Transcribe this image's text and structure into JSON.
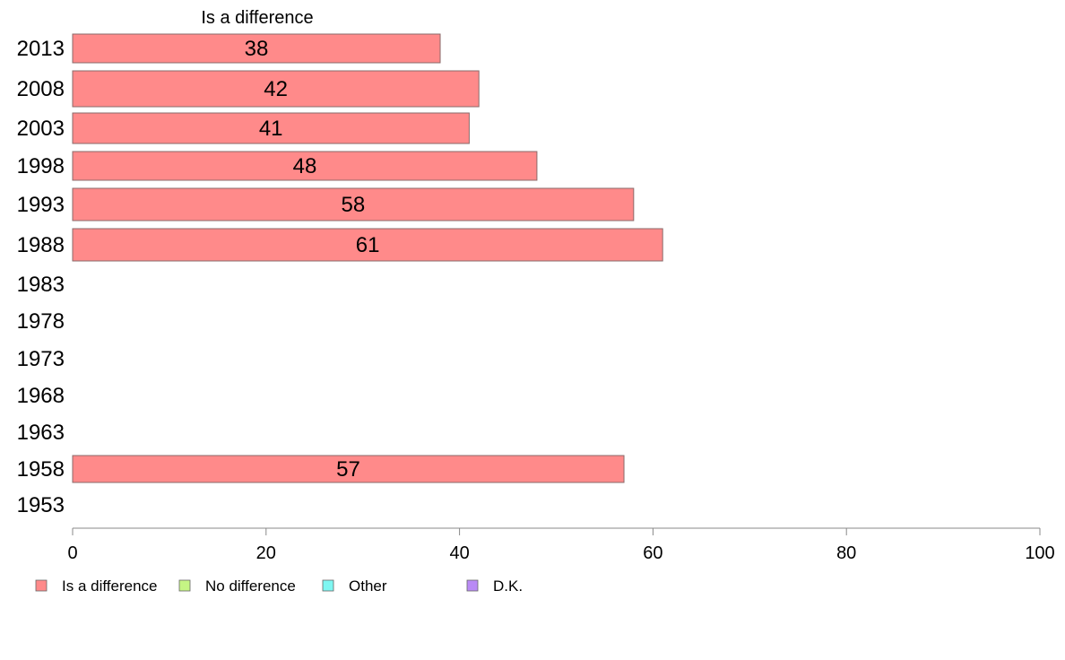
{
  "chart_data": {
    "type": "bar",
    "orientation": "horizontal",
    "series_title": "Is a difference",
    "categories": [
      "2013",
      "2008",
      "2003",
      "1998",
      "1993",
      "1988",
      "1983",
      "1978",
      "1973",
      "1968",
      "1963",
      "1958",
      "1953"
    ],
    "series": [
      {
        "name": "Is a difference",
        "color": "#ff8a8a",
        "values": [
          38,
          42,
          41,
          48,
          58,
          61,
          null,
          null,
          null,
          null,
          null,
          57,
          null
        ]
      }
    ],
    "xlim": [
      0,
      100
    ],
    "xticks": [
      0,
      20,
      40,
      60,
      80,
      100
    ],
    "legend": {
      "placement": "bottom",
      "items": [
        {
          "label": "Is a difference",
          "color": "#ff8a8a"
        },
        {
          "label": "No difference",
          "color": "#c5f584"
        },
        {
          "label": "Other",
          "color": "#7ef7f2"
        },
        {
          "label": "D.K.",
          "color": "#b98af5"
        }
      ]
    },
    "grid": false
  }
}
